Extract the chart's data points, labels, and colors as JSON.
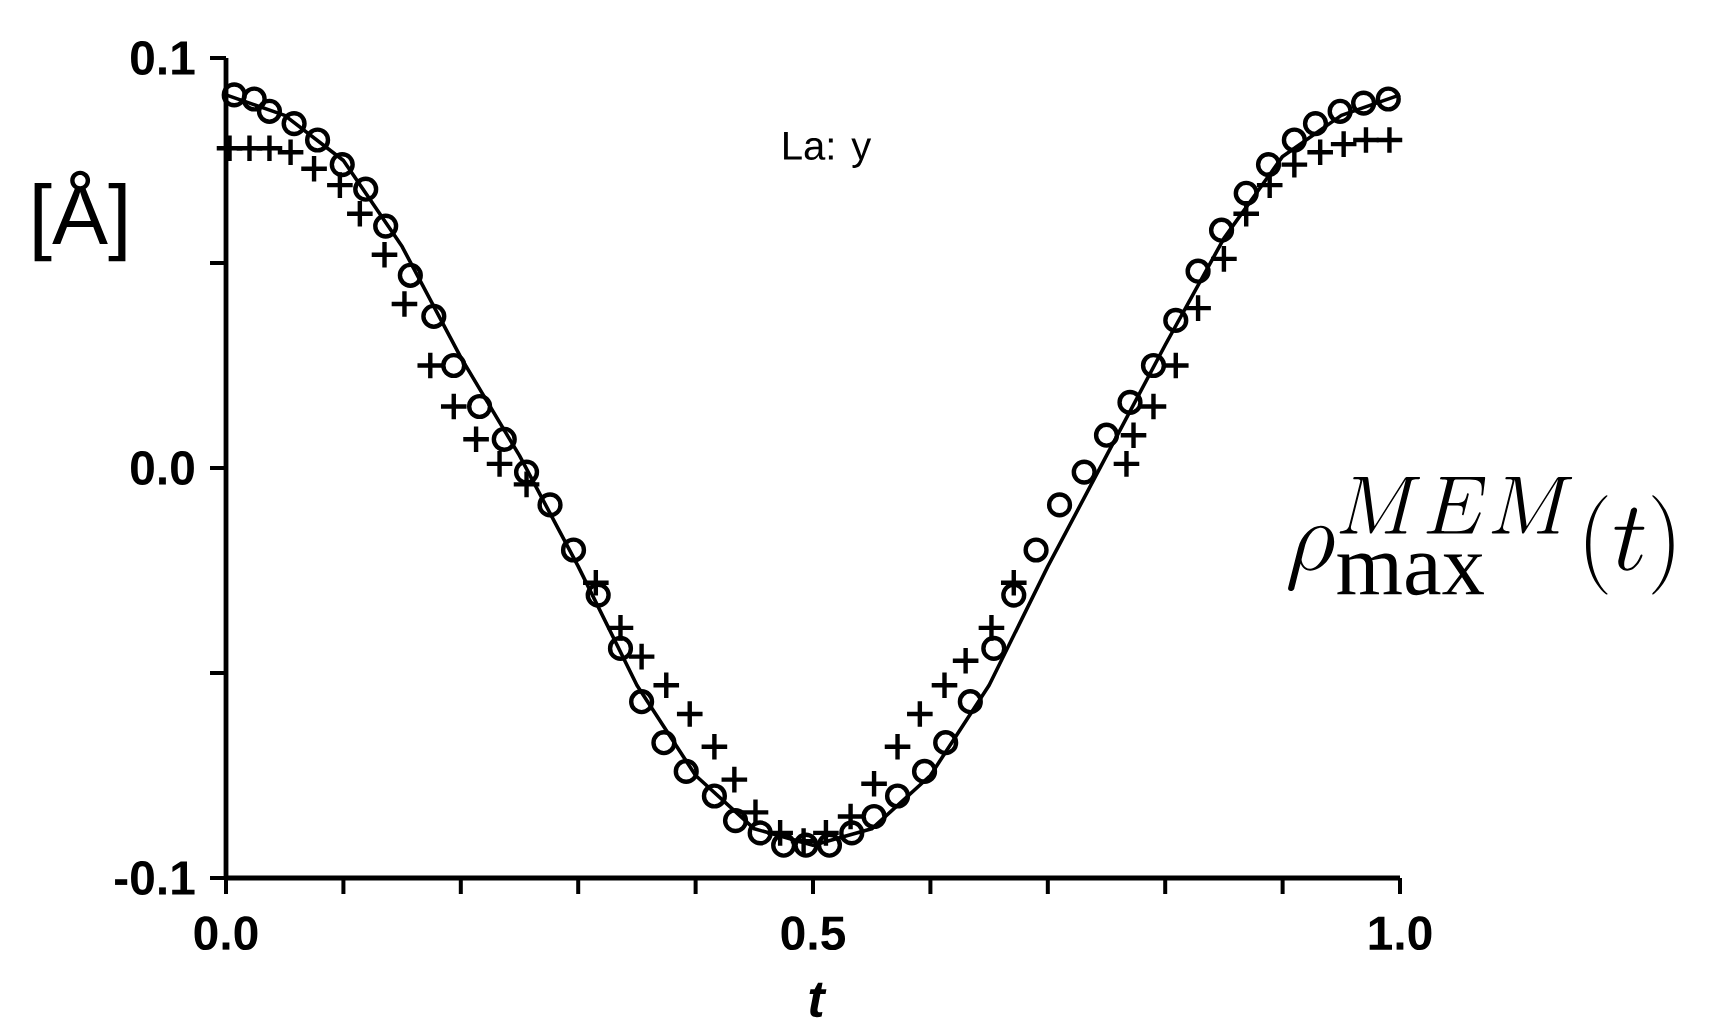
{
  "chart_data": {
    "type": "scatter",
    "xlabel": "t",
    "ylabel": "[Å]",
    "annotations": [
      "La: y",
      "\\rho_{\\mathrm{max}}^{MEM}(t)"
    ],
    "xlim": [
      0,
      1
    ],
    "ylim": [
      -0.1,
      0.1
    ],
    "xticks": [
      {
        "value": 0,
        "label": "0.0"
      },
      {
        "value": 0.1,
        "label": null
      },
      {
        "value": 0.2,
        "label": null
      },
      {
        "value": 0.3,
        "label": null
      },
      {
        "value": 0.4,
        "label": null
      },
      {
        "value": 0.5,
        "label": "0.5"
      },
      {
        "value": 0.6,
        "label": null
      },
      {
        "value": 0.7,
        "label": null
      },
      {
        "value": 0.8,
        "label": null
      },
      {
        "value": 0.9,
        "label": null
      },
      {
        "value": 1,
        "label": "1.0"
      }
    ],
    "yticks": [
      {
        "value": -0.1,
        "label": "-0.1"
      },
      {
        "value": -0.05,
        "label": null
      },
      {
        "value": 0,
        "label": "0.0"
      },
      {
        "value": 0.05,
        "label": null
      },
      {
        "value": 0.1,
        "label": "0.1"
      }
    ],
    "series": [
      {
        "type": "scatter",
        "marker": "circle",
        "color": "#000000",
        "x": [
          0.007,
          0.024,
          0.037,
          0.058,
          0.078,
          0.099,
          0.119,
          0.136,
          0.157,
          0.177,
          0.194,
          0.216,
          0.237,
          0.256,
          0.276,
          0.296,
          0.317,
          0.336,
          0.354,
          0.373,
          0.392,
          0.416,
          0.434,
          0.455,
          0.475,
          0.494,
          0.514,
          0.533,
          0.552,
          0.572,
          0.595,
          0.613,
          0.634,
          0.654,
          0.671,
          0.69,
          0.71,
          0.731,
          0.75,
          0.77,
          0.79,
          0.809,
          0.828,
          0.848,
          0.869,
          0.888,
          0.91,
          0.928,
          0.949,
          0.969,
          0.99
        ],
        "values": [
          0.091,
          0.09,
          0.087,
          0.084,
          0.08,
          0.074,
          0.068,
          0.059,
          0.047,
          0.037,
          0.025,
          0.015,
          0.007,
          -0.001,
          -0.009,
          -0.02,
          -0.031,
          -0.044,
          -0.057,
          -0.067,
          -0.074,
          -0.08,
          -0.086,
          -0.089,
          -0.092,
          -0.092,
          -0.092,
          -0.089,
          -0.085,
          -0.08,
          -0.074,
          -0.067,
          -0.057,
          -0.044,
          -0.031,
          -0.02,
          -0.009,
          -0.001,
          0.008,
          0.016,
          0.025,
          0.036,
          0.048,
          0.058,
          0.067,
          0.074,
          0.08,
          0.084,
          0.087,
          0.089,
          0.09
        ]
      },
      {
        "type": "scatter",
        "marker": "cross",
        "color": "#000000",
        "x": [
          0.003,
          0.02,
          0.037,
          0.055,
          0.075,
          0.097,
          0.114,
          0.135,
          0.152,
          0.174,
          0.194,
          0.213,
          0.233,
          0.256,
          0.315,
          0.336,
          0.354,
          0.375,
          0.395,
          0.416,
          0.433,
          0.451,
          0.472,
          0.492,
          0.511,
          0.532,
          0.552,
          0.572,
          0.591,
          0.612,
          0.63,
          0.652,
          0.671,
          0.767,
          0.773,
          0.79,
          0.809,
          0.828,
          0.85,
          0.869,
          0.889,
          0.91,
          0.932,
          0.952,
          0.971,
          0.991
        ],
        "values": [
          0.078,
          0.078,
          0.078,
          0.077,
          0.073,
          0.069,
          0.062,
          0.052,
          0.04,
          0.025,
          0.015,
          0.007,
          0.001,
          -0.004,
          -0.028,
          -0.039,
          -0.046,
          -0.053,
          -0.06,
          -0.068,
          -0.076,
          -0.084,
          -0.089,
          -0.091,
          -0.089,
          -0.085,
          -0.077,
          -0.068,
          -0.06,
          -0.053,
          -0.047,
          -0.039,
          -0.028,
          0.001,
          0.008,
          0.015,
          0.025,
          0.039,
          0.051,
          0.062,
          0.069,
          0.074,
          0.077,
          0.079,
          0.08,
          0.08
        ]
      },
      {
        "type": "line",
        "line_style": "solid",
        "color": "#000000",
        "x": [
          0,
          0.05,
          0.1,
          0.15,
          0.2,
          0.25,
          0.3,
          0.35,
          0.4,
          0.45,
          0.5,
          0.55,
          0.6,
          0.65,
          0.7,
          0.75,
          0.8,
          0.85,
          0.9,
          0.95,
          1
        ],
        "values": [
          0.091,
          0.086,
          0.075,
          0.054,
          0.027,
          0.003,
          -0.024,
          -0.053,
          -0.075,
          -0.088,
          -0.092,
          -0.088,
          -0.075,
          -0.053,
          -0.024,
          0.003,
          0.03,
          0.056,
          0.076,
          0.086,
          0.091
        ]
      }
    ]
  }
}
